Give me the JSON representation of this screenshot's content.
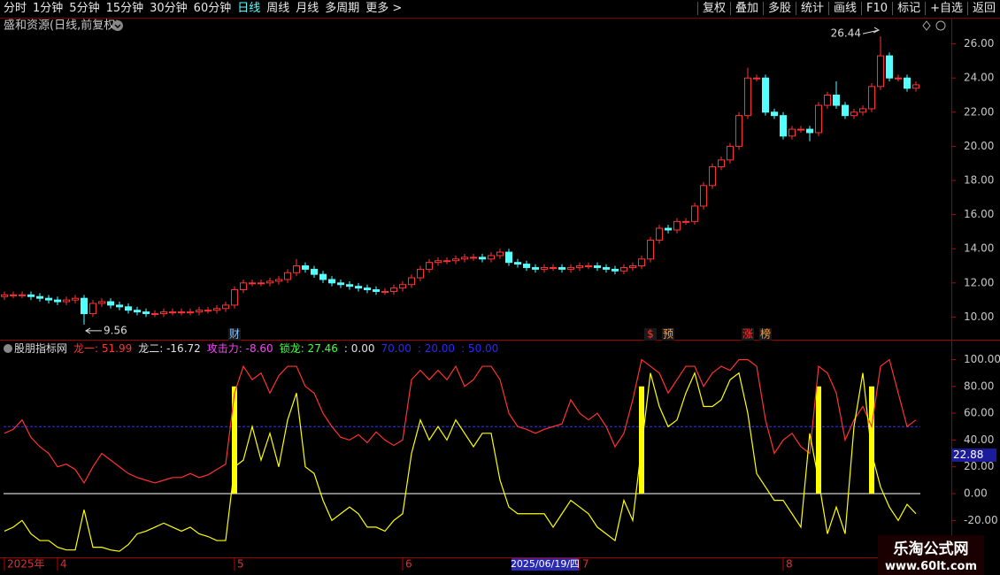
{
  "toolbar": {
    "left": [
      "分时",
      "1分钟",
      "5分钟",
      "15分钟",
      "30分钟",
      "60分钟",
      "日线",
      "周线",
      "月线",
      "多周期",
      "更多 >"
    ],
    "active": 6,
    "right": [
      "复权",
      "叠加",
      "多股",
      "统计",
      "画线",
      "F10",
      "标记",
      "+自选",
      "返回"
    ]
  },
  "chart_data": [
    {
      "type": "candlestick",
      "title": "盛和资源(日线,前复权)",
      "up_color": "#ff3232",
      "down_color": "#54ffff",
      "open": [
        11.2,
        11.3,
        11.3,
        11.3,
        11.2,
        11.1,
        11.0,
        10.9,
        11.0,
        11.1,
        10.2,
        10.8,
        10.9,
        10.7,
        10.6,
        10.4,
        10.3,
        10.2,
        10.2,
        10.3,
        10.3,
        10.3,
        10.3,
        10.4,
        10.4,
        10.5,
        10.7,
        11.6,
        12.0,
        12.0,
        12.0,
        12.1,
        12.2,
        12.6,
        13.0,
        12.8,
        12.5,
        12.2,
        12.0,
        11.9,
        11.8,
        11.7,
        11.6,
        11.5,
        11.5,
        11.7,
        11.9,
        12.3,
        12.8,
        13.2,
        13.3,
        13.3,
        13.4,
        13.5,
        13.5,
        13.4,
        13.6,
        13.8,
        13.2,
        13.1,
        12.9,
        12.8,
        12.9,
        12.9,
        12.8,
        12.9,
        13.0,
        13.0,
        12.9,
        12.8,
        12.7,
        12.9,
        13.0,
        13.4,
        14.5,
        15.2,
        15.1,
        15.6,
        15.6,
        16.5,
        17.7,
        18.8,
        19.2,
        20.0,
        21.8,
        24.0,
        24.0,
        22.0,
        21.8,
        20.6,
        21.0,
        21.0,
        20.8,
        22.4,
        23.0,
        22.4,
        21.8,
        22.0,
        22.2,
        23.5,
        25.3,
        24.0,
        24.0,
        23.4
      ],
      "high": [
        11.5,
        11.5,
        11.5,
        11.5,
        11.4,
        11.3,
        11.2,
        11.2,
        11.3,
        11.3,
        11.0,
        11.1,
        11.1,
        10.9,
        10.8,
        10.6,
        10.5,
        10.4,
        10.5,
        10.5,
        10.5,
        10.5,
        10.6,
        10.6,
        10.7,
        10.9,
        11.8,
        12.2,
        12.2,
        12.2,
        12.3,
        12.4,
        12.8,
        13.4,
        13.2,
        13.0,
        12.7,
        12.4,
        12.2,
        12.1,
        12.0,
        11.9,
        11.8,
        11.7,
        11.9,
        12.1,
        12.5,
        13.0,
        13.4,
        13.5,
        13.5,
        13.6,
        13.7,
        13.7,
        13.7,
        13.8,
        14.0,
        14.0,
        13.4,
        13.3,
        13.1,
        13.1,
        13.1,
        13.1,
        13.1,
        13.2,
        13.2,
        13.2,
        13.1,
        13.0,
        13.1,
        13.2,
        13.6,
        14.7,
        15.4,
        15.4,
        15.8,
        15.8,
        16.7,
        17.9,
        19.0,
        19.4,
        20.2,
        22.0,
        24.6,
        24.2,
        24.2,
        22.2,
        22.0,
        21.2,
        21.2,
        21.2,
        22.6,
        23.2,
        23.8,
        22.6,
        22.2,
        22.4,
        23.7,
        26.44,
        25.5,
        24.2,
        24.2,
        23.8
      ],
      "low": [
        11.0,
        11.1,
        11.1,
        11.0,
        10.9,
        10.8,
        10.7,
        10.7,
        10.8,
        9.56,
        10.0,
        10.6,
        10.5,
        10.4,
        10.2,
        10.1,
        10.0,
        10.0,
        10.0,
        10.1,
        10.1,
        10.1,
        10.1,
        10.2,
        10.2,
        10.3,
        10.5,
        11.4,
        11.8,
        11.8,
        11.8,
        11.9,
        12.0,
        12.4,
        12.6,
        12.3,
        12.0,
        11.8,
        11.7,
        11.6,
        11.5,
        11.4,
        11.3,
        11.3,
        11.3,
        11.5,
        11.7,
        12.1,
        12.6,
        13.0,
        13.1,
        13.1,
        13.2,
        13.3,
        13.2,
        13.2,
        13.4,
        13.0,
        12.9,
        12.7,
        12.6,
        12.6,
        12.7,
        12.6,
        12.6,
        12.7,
        12.8,
        12.7,
        12.6,
        12.5,
        12.5,
        12.7,
        12.8,
        13.2,
        14.3,
        14.9,
        14.9,
        15.4,
        15.4,
        16.3,
        17.5,
        18.6,
        19.0,
        19.8,
        21.6,
        23.8,
        21.8,
        21.6,
        20.4,
        20.4,
        20.8,
        20.3,
        20.6,
        22.2,
        22.2,
        21.6,
        21.6,
        21.8,
        22.0,
        23.3,
        23.8,
        23.8,
        23.2,
        23.2
      ],
      "close": [
        11.3,
        11.3,
        11.3,
        11.2,
        11.1,
        11.0,
        10.9,
        11.0,
        11.1,
        10.2,
        10.8,
        10.9,
        10.7,
        10.6,
        10.4,
        10.3,
        10.2,
        10.2,
        10.3,
        10.3,
        10.3,
        10.3,
        10.4,
        10.4,
        10.5,
        10.7,
        11.6,
        12.0,
        12.0,
        12.0,
        12.1,
        12.2,
        12.6,
        13.0,
        12.8,
        12.5,
        12.2,
        12.0,
        11.9,
        11.8,
        11.7,
        11.6,
        11.5,
        11.5,
        11.7,
        11.9,
        12.3,
        12.8,
        13.2,
        13.3,
        13.3,
        13.4,
        13.5,
        13.5,
        13.4,
        13.6,
        13.8,
        13.2,
        13.1,
        12.9,
        12.8,
        12.9,
        12.9,
        12.8,
        12.9,
        13.0,
        13.0,
        12.9,
        12.8,
        12.7,
        12.9,
        13.0,
        13.4,
        14.5,
        15.2,
        15.1,
        15.6,
        15.6,
        16.5,
        17.7,
        18.8,
        19.2,
        20.0,
        21.8,
        24.0,
        24.0,
        22.0,
        21.8,
        20.6,
        21.0,
        21.0,
        20.8,
        22.4,
        23.0,
        22.4,
        21.8,
        22.0,
        22.2,
        23.5,
        25.3,
        24.0,
        24.0,
        23.4,
        23.6
      ],
      "max_index": 99,
      "min_index": 9,
      "ylim": [
        9.4,
        26.6
      ],
      "yticks": [
        {
          "value": 10,
          "label": "10.00"
        },
        {
          "value": 12,
          "label": "12.00"
        },
        {
          "value": 14,
          "label": "14.00"
        },
        {
          "value": 16,
          "label": "16.00"
        },
        {
          "value": 18,
          "label": "18.00"
        },
        {
          "value": 20,
          "label": "20.00"
        },
        {
          "value": 22,
          "label": "22.00"
        },
        {
          "value": 24,
          "label": "24.00"
        },
        {
          "value": 26,
          "label": "26.00"
        }
      ],
      "events": [
        {
          "x": 26,
          "label": "财",
          "color": "#80c0ff"
        },
        {
          "x": 73,
          "label": "$",
          "color": "#ff3232"
        },
        {
          "x": 75,
          "label": "预",
          "color": "#ff9933"
        },
        {
          "x": 84,
          "label": "涨",
          "color": "#ff3232"
        },
        {
          "x": 86,
          "label": "榜",
          "color": "#ff9933"
        }
      ]
    },
    {
      "type": "line",
      "title": "股朋指标网",
      "legend": [
        {
          "text": "龙一: 51.99",
          "color": "#ff3232"
        },
        {
          "text": "龙二: -16.72",
          "color": "#e0e0e0"
        },
        {
          "text": "攻击力: -8.60",
          "color": "#ff40ff"
        },
        {
          "text": "锁龙: 27.46",
          "color": "#40ff40"
        },
        {
          "text": ": 0.00",
          "color": "#e0e0e0"
        },
        {
          "text": "70.00",
          "color": "#2828ff"
        },
        {
          "text": ": 20.00",
          "color": "#2828ff"
        },
        {
          "text": ": 50.00",
          "color": "#2828ff"
        }
      ],
      "series": [
        {
          "color": "#ff3232",
          "values": [
            45,
            48,
            55,
            42,
            35,
            30,
            20,
            22,
            18,
            8,
            20,
            30,
            25,
            20,
            15,
            12,
            10,
            8,
            10,
            12,
            12,
            15,
            12,
            14,
            18,
            22,
            75,
            95,
            85,
            90,
            75,
            88,
            95,
            95,
            80,
            75,
            60,
            50,
            42,
            40,
            44,
            38,
            46,
            40,
            36,
            40,
            85,
            92,
            85,
            92,
            85,
            95,
            80,
            85,
            95,
            95,
            85,
            60,
            50,
            48,
            45,
            48,
            50,
            52,
            70,
            60,
            55,
            60,
            50,
            35,
            45,
            70,
            100,
            95,
            90,
            75,
            85,
            95,
            95,
            80,
            90,
            95,
            92,
            100,
            100,
            95,
            55,
            30,
            40,
            45,
            35,
            30,
            95,
            90,
            75,
            40,
            55,
            65,
            50,
            95,
            100,
            75,
            50,
            55
          ]
        },
        {
          "color": "#ffff00",
          "values": [
            -28,
            -25,
            -20,
            -30,
            -35,
            -35,
            -40,
            -42,
            -42,
            -12,
            -40,
            -40,
            -42,
            -43,
            -38,
            -30,
            -28,
            -25,
            -22,
            -25,
            -28,
            -25,
            -30,
            -32,
            -35,
            -35,
            20,
            25,
            50,
            25,
            45,
            20,
            55,
            75,
            20,
            15,
            -5,
            -20,
            -15,
            -10,
            -15,
            -25,
            -25,
            -28,
            -20,
            -15,
            30,
            55,
            40,
            50,
            40,
            55,
            45,
            35,
            45,
            45,
            10,
            -10,
            -15,
            -15,
            -15,
            -15,
            -25,
            -15,
            -5,
            -10,
            -15,
            -25,
            -30,
            -35,
            -5,
            -20,
            35,
            90,
            65,
            50,
            55,
            75,
            90,
            65,
            65,
            70,
            85,
            90,
            60,
            15,
            5,
            -5,
            -5,
            -15,
            -25,
            45,
            10,
            -30,
            -10,
            -30,
            50,
            90,
            30,
            5,
            -10,
            -20,
            -8,
            -15
          ]
        }
      ],
      "signals": {
        "color": "#ffff00",
        "x": [
          26,
          72,
          92,
          98
        ],
        "values": [
          80,
          80,
          80,
          80
        ]
      },
      "reference_lines": [
        {
          "value": 50,
          "color": "#3333ff",
          "dashed": true
        },
        {
          "value": 0,
          "color": "#ffffff",
          "dashed": false
        }
      ],
      "ylim": [
        -47.5,
        112.2
      ],
      "yticks": [
        {
          "value": -20,
          "label": "-20.00"
        },
        {
          "value": 0,
          "label": "0.00"
        },
        {
          "value": 20,
          "label": "20.00"
        },
        {
          "value": 40,
          "label": "40.00"
        },
        {
          "value": 60,
          "label": "60.00"
        },
        {
          "value": 80,
          "label": "80.00"
        },
        {
          "value": 100,
          "label": "100.00"
        }
      ],
      "xticks": [
        {
          "value": 0,
          "label": "2025年"
        },
        {
          "value": 6,
          "label": "4"
        },
        {
          "value": 26,
          "label": "5"
        },
        {
          "value": 45,
          "label": "6"
        },
        {
          "value": 65,
          "label": "7"
        },
        {
          "value": 88,
          "label": "8"
        }
      ],
      "cursor_value": "22.88",
      "cursor_date": "2025/06/19/四"
    }
  ],
  "watermark": {
    "title": "乐淘公式网",
    "url": "www.60lt.com"
  }
}
